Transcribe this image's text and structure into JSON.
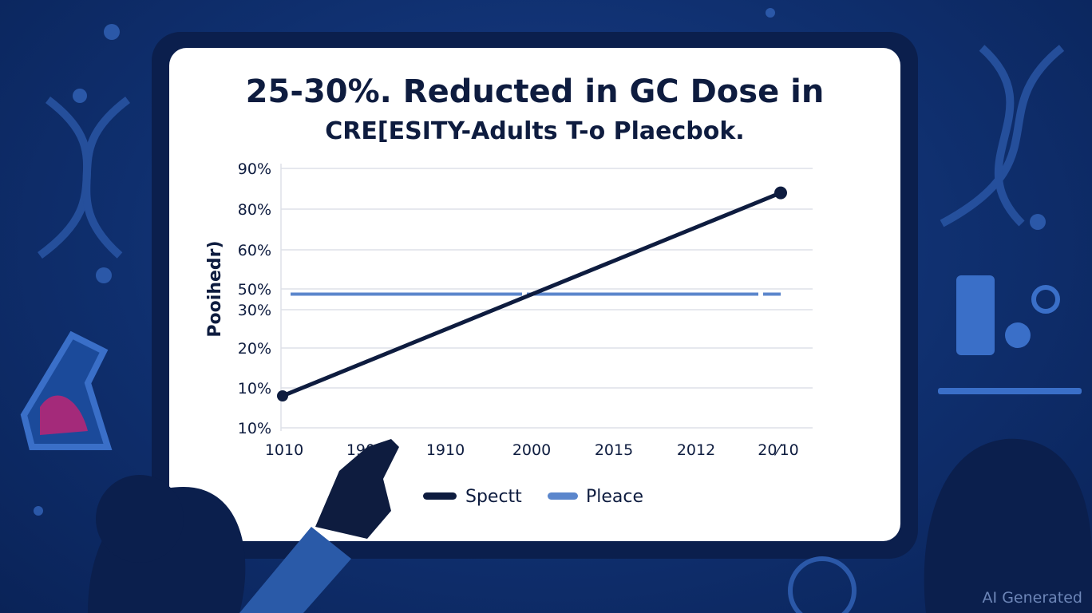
{
  "chart_data": {
    "type": "line",
    "title": "25-30%. Reducted in GC Dose in",
    "subtitle": "CRE[ESITY-Adults T-o Plaecbok.",
    "ylabel": "Pooihedr)",
    "xlabel": "",
    "y_tick_labels": [
      "10%",
      "10%",
      "20%",
      "30%",
      "50%",
      "60%",
      "80%",
      "90%"
    ],
    "x_tick_labels": [
      "1010",
      "1900",
      "1910",
      "2000",
      "2015",
      "2012",
      "20⁄10"
    ],
    "grid": true,
    "legend_placement": "bottom",
    "series": [
      {
        "name": "Spectt",
        "color": "#0e1c3f",
        "points": [
          {
            "x": "1010",
            "y": 8
          },
          {
            "x": "20⁄10",
            "y": 84
          }
        ]
      },
      {
        "name": "Pleace",
        "color": "#5b86cc",
        "points": [
          {
            "x": "1010",
            "y": 45
          },
          {
            "x": "20⁄10",
            "y": 45
          }
        ]
      }
    ]
  },
  "watermark": "AI Generated",
  "colors": {
    "background": "#0f2f6e",
    "panel": "#ffffff",
    "text": "#0e1c3f",
    "accent": "#5b86cc"
  }
}
